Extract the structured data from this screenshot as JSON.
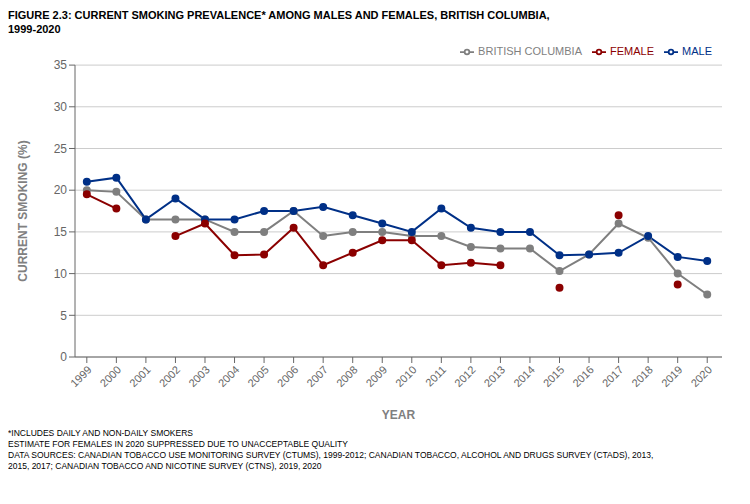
{
  "chart_data": {
    "type": "line",
    "title": "FIGURE 2.3: CURRENT SMOKING PREVALENCE* AMONG MALES AND FEMALES, BRITISH COLUMBIA,",
    "subtitle": "1999-2020",
    "x_label": "YEAR",
    "y_label": "CURRENT SMOKING (%)",
    "x": [
      1999,
      2000,
      2001,
      2002,
      2003,
      2004,
      2005,
      2006,
      2007,
      2008,
      2009,
      2010,
      2011,
      2012,
      2013,
      2014,
      2015,
      2016,
      2017,
      2018,
      2019,
      2020
    ],
    "series": [
      {
        "name": "BRITISH COLUMBIA",
        "color": "#7f7f7f",
        "values": [
          20.0,
          19.8,
          16.5,
          16.5,
          16.5,
          15.0,
          15.0,
          17.5,
          14.5,
          15.0,
          15.0,
          14.5,
          14.5,
          13.2,
          13.0,
          13.0,
          10.3,
          12.3,
          16.0,
          14.3,
          10.0,
          7.5
        ]
      },
      {
        "name": "MALE",
        "color": "#003087",
        "values": [
          21.0,
          21.5,
          16.5,
          19.0,
          16.5,
          16.5,
          17.5,
          17.5,
          18.0,
          17.0,
          16.0,
          15.0,
          17.8,
          15.5,
          15.0,
          15.0,
          12.2,
          12.3,
          12.5,
          14.5,
          12.0,
          11.5
        ]
      },
      {
        "name": "FEMALE",
        "color": "#8B0000",
        "values": [
          19.5,
          17.8,
          null,
          14.5,
          16.0,
          12.2,
          12.3,
          15.5,
          11.0,
          12.5,
          14.0,
          14.0,
          11.0,
          11.3,
          11.0,
          null,
          8.3,
          null,
          17.0,
          null,
          8.7,
          null
        ]
      }
    ],
    "xlim": [
      1998.6,
      2020.5
    ],
    "xticks": [
      1999,
      2000,
      2001,
      2002,
      2003,
      2004,
      2005,
      2006,
      2007,
      2008,
      2009,
      2010,
      2011,
      2012,
      2013,
      2014,
      2015,
      2016,
      2017,
      2018,
      2019,
      2020
    ],
    "ylim": [
      0,
      35
    ],
    "yticks": [
      0,
      5,
      10,
      15,
      20,
      25,
      30,
      35
    ],
    "grid": true,
    "legend": "upper right",
    "marker": "circle",
    "annotations": [
      "*INCLUDES DAILY AND NON-DAILY SMOKERS",
      "ESTIMATE FOR FEMALES IN 2020 SUPPRESSED DUE TO UNACCEPTABLE QUALITY",
      "DATA SOURCES: CANADIAN TOBACCO USE MONITORING SURVEY (CTUMS), 1999-2012; CANADIAN TOBACCO, ALCOHOL AND DRUGS SURVEY (CTADS), 2013,",
      "2015, 2017; CANADIAN TOBACCO AND NICOTINE SURVEY (CTNS), 2019, 2020"
    ]
  }
}
